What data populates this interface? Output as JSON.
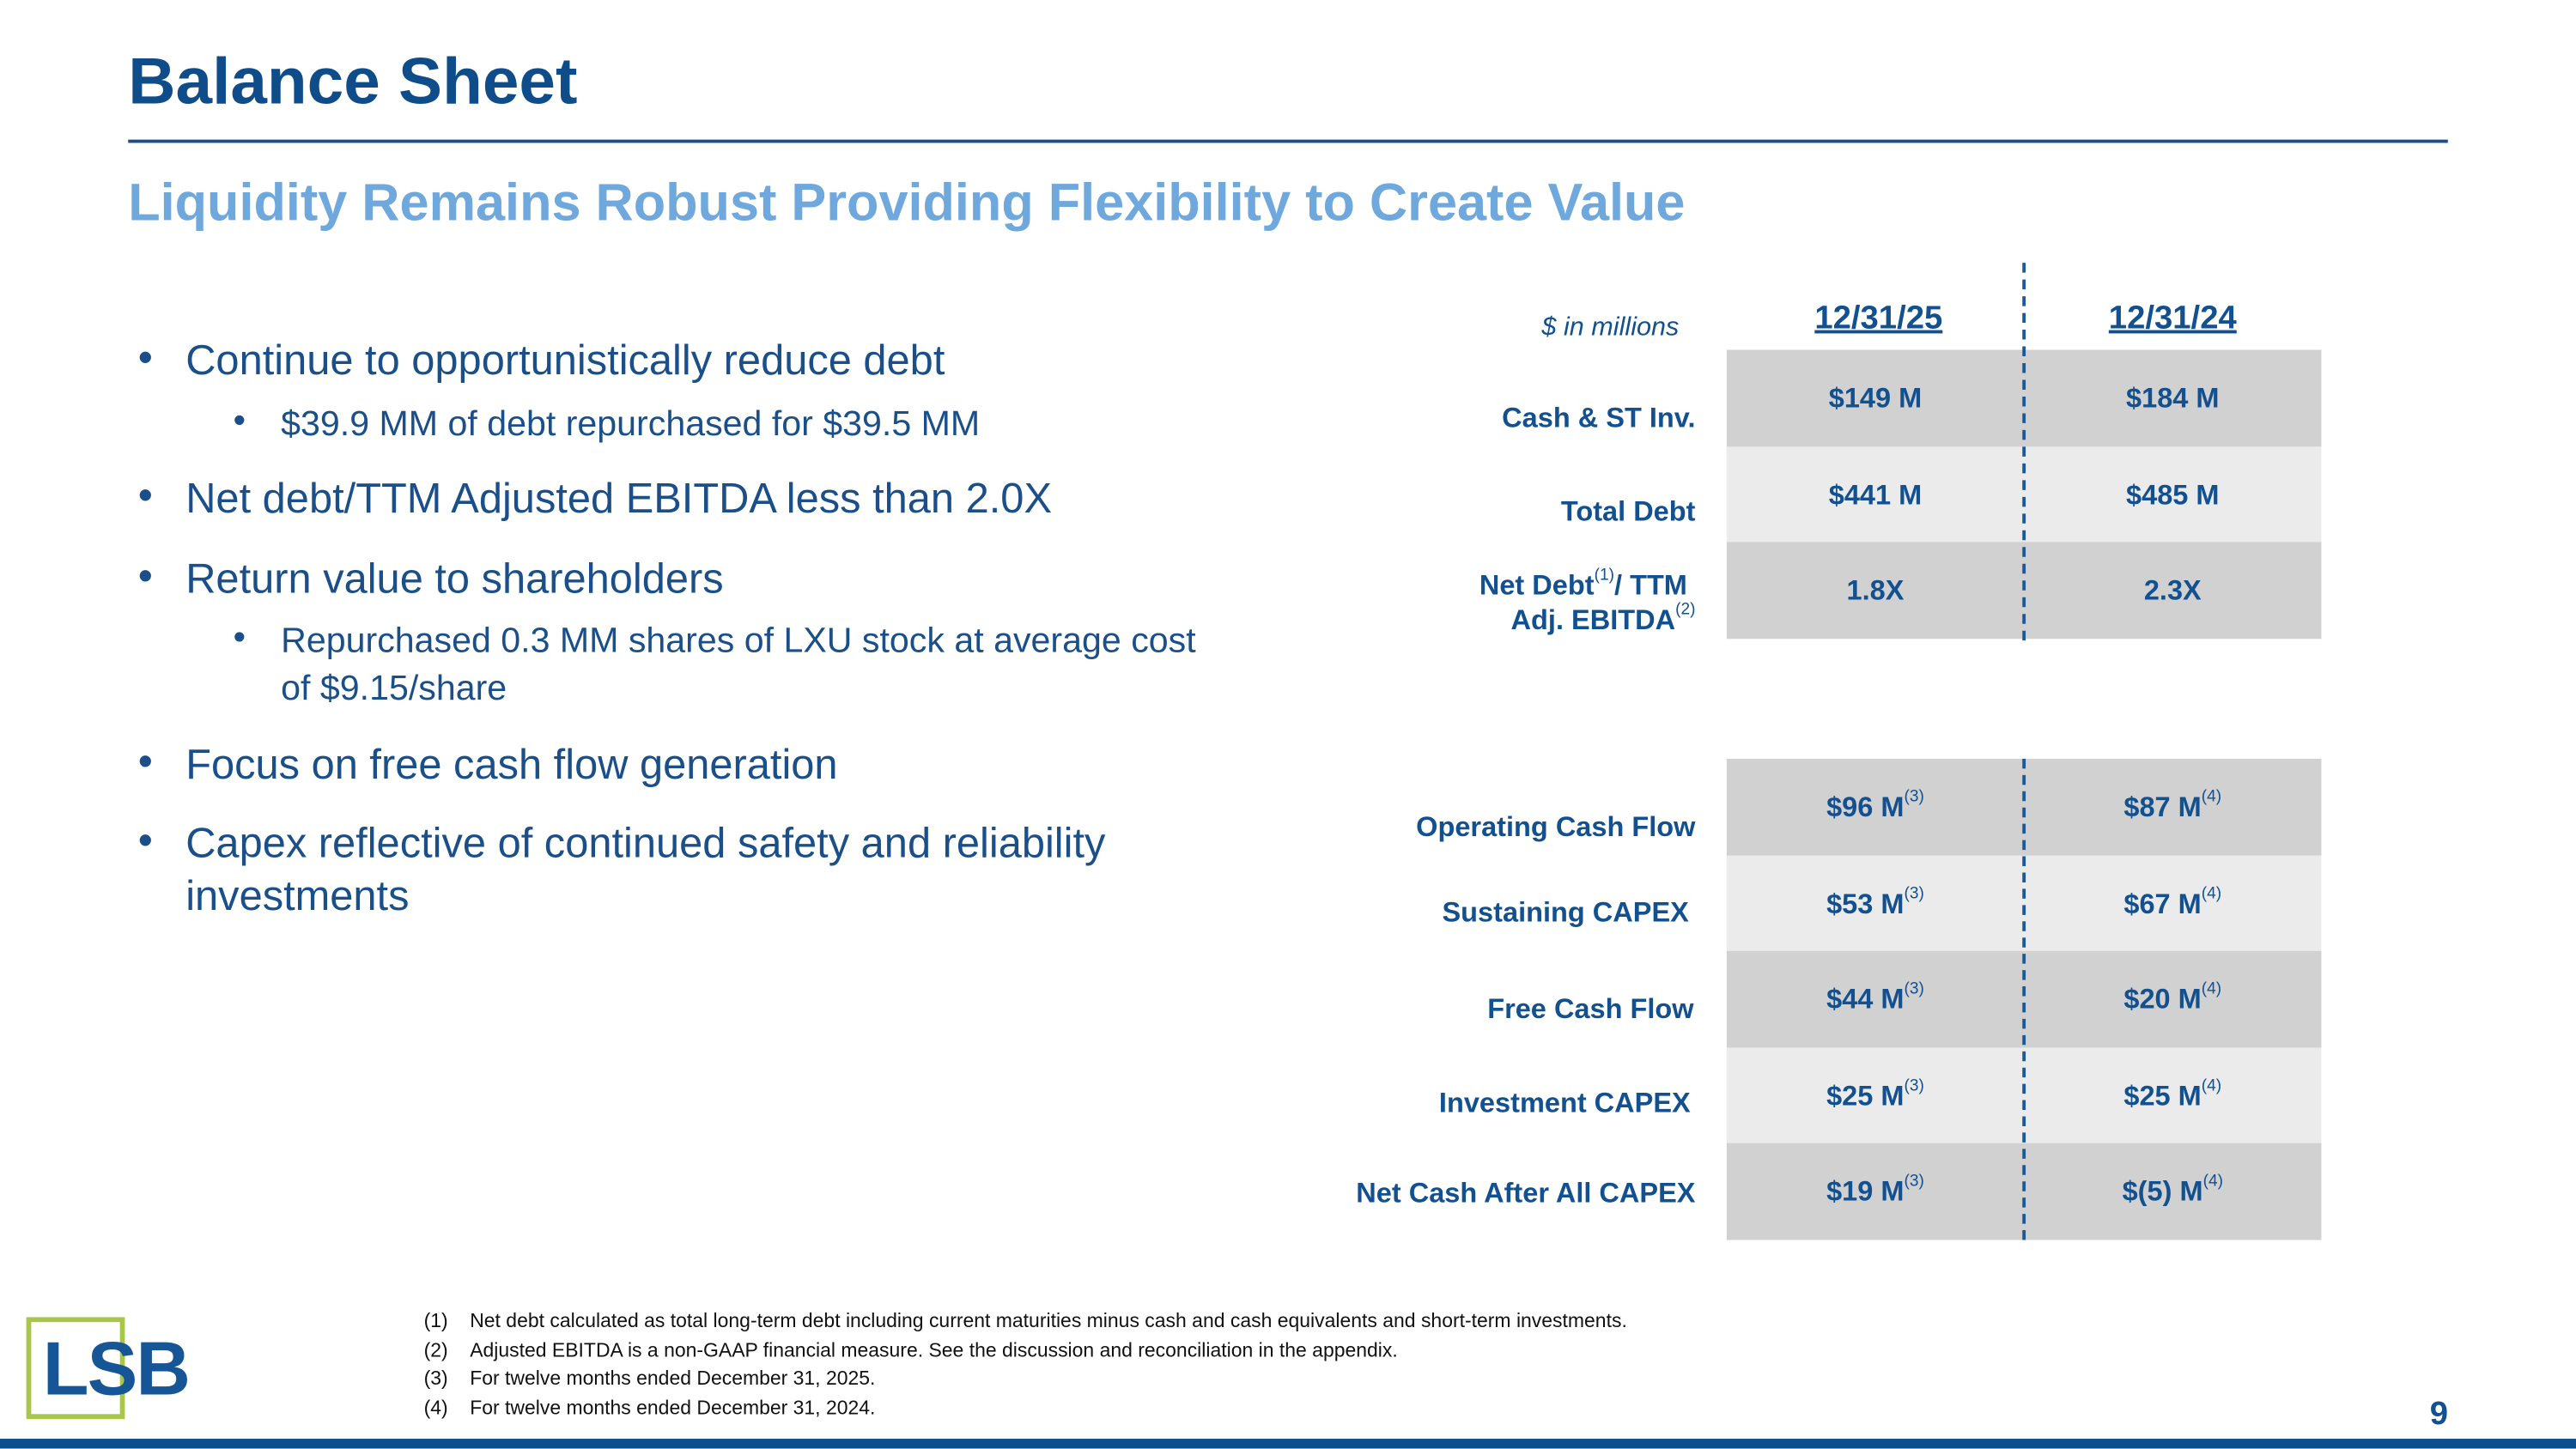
{
  "title": "Balance Sheet",
  "subtitle": "Liquidity Remains Robust Providing Flexibility to Create Value",
  "bullets": [
    {
      "text": "Continue to opportunistically reduce debt",
      "sub": [
        "$39.9 MM of debt repurchased for $39.5 MM"
      ]
    },
    {
      "text": "Net debt/TTM Adjusted EBITDA less than 2.0X",
      "sub": []
    },
    {
      "text": "Return value to shareholders",
      "sub": [
        "Repurchased 0.3 MM shares of LXU stock at average cost of $9.15/share"
      ]
    },
    {
      "text": "Focus on free cash flow generation",
      "sub": []
    },
    {
      "text": "Capex reflective of continued safety and reliability investments",
      "sub": []
    }
  ],
  "table": {
    "units_label": "$ in millions",
    "columns": [
      "12/31/25",
      "12/31/24"
    ],
    "balance_rows": [
      {
        "label": "Cash & ST Inv.",
        "values": [
          "$149 M",
          "$184 M"
        ]
      },
      {
        "label": "Total Debt",
        "values": [
          "$441 M",
          "$485 M"
        ]
      },
      {
        "label_line1": "Net Debt",
        "label_sup1": "(1)",
        "label_line1b": "/ TTM",
        "label_line2": "Adj. EBITDA",
        "label_sup2": "(2)",
        "values": [
          "1.8X",
          "2.3X"
        ]
      }
    ],
    "cash_flow_rows": [
      {
        "label": "Operating Cash Flow",
        "values": [
          "$96 M",
          "$87 M"
        ]
      },
      {
        "label": "Sustaining CAPEX",
        "values": [
          "$53 M",
          "$67 M"
        ]
      },
      {
        "label": "Free Cash Flow",
        "values": [
          "$44 M",
          "$20 M"
        ]
      },
      {
        "label": "Investment CAPEX",
        "values": [
          "$25 M",
          "$25 M"
        ]
      },
      {
        "label": "Net Cash After All CAPEX",
        "values": [
          "$19 M",
          "$(5) M"
        ]
      }
    ],
    "cash_flow_sups": [
      "(3)",
      "(4)"
    ]
  },
  "footnotes": [
    {
      "num": "(1)",
      "text": "Net debt calculated as total long-term debt including current maturities minus cash and cash equivalents and short-term investments."
    },
    {
      "num": "(2)",
      "text": "Adjusted EBITDA is a non-GAAP financial measure.  See the discussion and reconciliation in the appendix."
    },
    {
      "num": "(3)",
      "text": "For twelve months ended December 31, 2025."
    },
    {
      "num": "(4)",
      "text": "For twelve months ended December 31, 2024."
    }
  ],
  "logo_text": "LSB",
  "page_number": "9",
  "colors": {
    "title": "#0e4c8a",
    "subtitle": "#6fa8dc",
    "row_dark": "#d1d1d1",
    "row_light": "#ebebeb",
    "logo_green": "#a7c64a",
    "bar": "#0b4f8c"
  }
}
